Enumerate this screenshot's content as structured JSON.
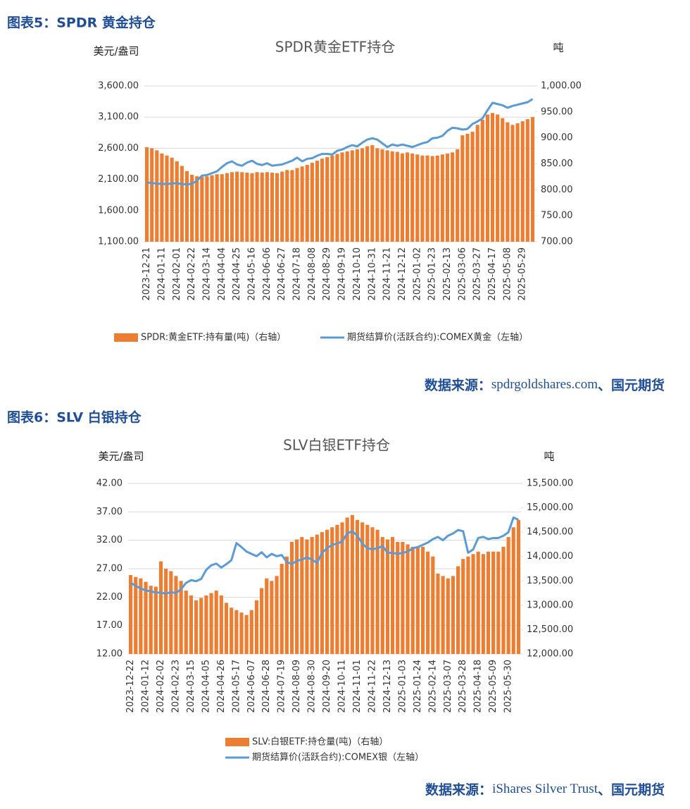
{
  "figures": [
    {
      "heading": "图表5：SPDR 黄金持仓",
      "source": {
        "label": "数据来源：",
        "text": "spdrgoldshares.com",
        "suffix": "、国元期货"
      }
    },
    {
      "heading": "图表6：SLV 白银持仓",
      "source": {
        "label": "数据来源：",
        "text": "iShares Silver Trust",
        "suffix": "、国元期货"
      }
    }
  ],
  "chart_data": [
    {
      "type": "combo",
      "title": "SPDR黄金ETF持仓",
      "y_label": "美元/盎司",
      "y2_label": "吨",
      "categories": [
        "2023-12-21",
        null,
        null,
        "2024-01-11",
        null,
        null,
        "2024-02-01",
        null,
        null,
        "2024-02-22",
        null,
        null,
        "2024-03-14",
        null,
        null,
        "2024-04-04",
        null,
        null,
        "2024-04-25",
        null,
        null,
        "2024-05-16",
        null,
        null,
        "2024-06-06",
        null,
        null,
        "2024-06-27",
        null,
        null,
        "2024-07-18",
        null,
        null,
        "2024-08-08",
        null,
        null,
        "2024-08-29",
        null,
        null,
        "2024-09-19",
        null,
        null,
        "2024-10-10",
        null,
        null,
        "2024-10-31",
        null,
        null,
        "2024-11-21",
        null,
        null,
        "2024-12-12",
        null,
        null,
        "2025-01-02",
        null,
        null,
        "2025-01-23",
        null,
        null,
        "2025-02-13",
        null,
        null,
        "2025-03-06",
        null,
        null,
        "2025-03-27",
        null,
        null,
        "2025-04-17",
        null,
        null,
        "2025-05-08",
        null,
        null,
        "2025-05-29",
        null,
        null
      ],
      "ylim": [
        1100,
        3600
      ],
      "yticks": [
        {
          "value": 1100,
          "label": "1,100.00"
        },
        {
          "value": 1600,
          "label": "1,600.00"
        },
        {
          "value": 2100,
          "label": "2,100.00"
        },
        {
          "value": 2600,
          "label": "2,600.00"
        },
        {
          "value": 3100,
          "label": "3,100.00"
        },
        {
          "value": 3600,
          "label": "3,600.00"
        }
      ],
      "y2lim": [
        700,
        1000
      ],
      "y2ticks": [
        {
          "value": 700,
          "label": "700.00"
        },
        {
          "value": 750,
          "label": "750.00"
        },
        {
          "value": 800,
          "label": "800.00"
        },
        {
          "value": 850,
          "label": "850.00"
        },
        {
          "value": 900,
          "label": "900.00"
        },
        {
          "value": 950,
          "label": "950.00"
        },
        {
          "value": 1000,
          "label": "1,000.00"
        }
      ],
      "series": [
        {
          "name": "SPDR:黄金ETF:持有量(吨)（右轴）",
          "type": "bar",
          "axis": "y2",
          "color": "#ed7d31",
          "values": [
            882,
            880,
            876,
            870,
            866,
            862,
            855,
            846,
            836,
            829,
            826,
            825,
            826,
            828,
            830,
            830,
            832,
            834,
            835,
            834,
            833,
            832,
            834,
            833,
            834,
            833,
            832,
            835,
            838,
            838,
            842,
            845,
            848,
            852,
            856,
            860,
            863,
            866,
            869,
            872,
            874,
            876,
            878,
            880,
            884,
            886,
            880,
            878,
            876,
            874,
            873,
            870,
            872,
            870,
            868,
            866,
            866,
            865,
            866,
            868,
            870,
            872,
            878,
            905,
            908,
            912,
            925,
            935,
            945,
            948,
            945,
            938,
            930,
            925,
            928,
            932,
            936,
            940
          ]
        },
        {
          "name": "期货结算价(活跃合约):COMEX黄金（左轴）",
          "type": "line",
          "color": "#5b9bd5",
          "values": [
            2050,
            2045,
            2030,
            2030,
            2025,
            2035,
            2040,
            2025,
            2020,
            2030,
            2080,
            2160,
            2170,
            2200,
            2230,
            2300,
            2360,
            2390,
            2340,
            2320,
            2370,
            2400,
            2350,
            2330,
            2360,
            2320,
            2330,
            2340,
            2370,
            2400,
            2450,
            2390,
            2430,
            2440,
            2480,
            2510,
            2510,
            2500,
            2560,
            2580,
            2620,
            2650,
            2630,
            2690,
            2740,
            2760,
            2740,
            2680,
            2620,
            2660,
            2640,
            2660,
            2640,
            2620,
            2650,
            2680,
            2700,
            2760,
            2770,
            2800,
            2880,
            2930,
            2920,
            2900,
            2910,
            2990,
            3030,
            3080,
            3210,
            3330,
            3310,
            3290,
            3250,
            3280,
            3300,
            3320,
            3340,
            3390
          ]
        }
      ]
    },
    {
      "type": "combo",
      "title": "SLV白银ETF持仓",
      "y_label": "美元/盎司",
      "y2_label": "吨",
      "categories": [
        "2023-12-22",
        null,
        null,
        "2024-01-12",
        null,
        null,
        "2024-02-02",
        null,
        null,
        "2024-02-23",
        null,
        null,
        "2024-03-15",
        null,
        null,
        "2024-04-05",
        null,
        null,
        "2024-04-26",
        null,
        null,
        "2024-05-17",
        null,
        null,
        "2024-06-07",
        null,
        null,
        "2024-06-28",
        null,
        null,
        "2024-07-19",
        null,
        null,
        "2024-08-09",
        null,
        null,
        "2024-08-30",
        null,
        null,
        "2024-09-20",
        null,
        null,
        "2024-10-11",
        null,
        null,
        "2024-11-01",
        null,
        null,
        "2024-11-22",
        null,
        null,
        "2024-12-13",
        null,
        null,
        "2025-01-03",
        null,
        null,
        "2025-01-24",
        null,
        null,
        "2025-02-14",
        null,
        null,
        "2025-03-07",
        null,
        null,
        "2025-03-28",
        null,
        null,
        "2025-04-18",
        null,
        null,
        "2025-05-09",
        null,
        null,
        "2025-05-30",
        null,
        null
      ],
      "ylim": [
        12,
        42
      ],
      "yticks": [
        {
          "value": 12,
          "label": "12.00"
        },
        {
          "value": 17,
          "label": "17.00"
        },
        {
          "value": 22,
          "label": "22.00"
        },
        {
          "value": 27,
          "label": "27.00"
        },
        {
          "value": 32,
          "label": "32.00"
        },
        {
          "value": 37,
          "label": "37.00"
        },
        {
          "value": 42,
          "label": "42.00"
        }
      ],
      "y2lim": [
        12000,
        15500
      ],
      "y2ticks": [
        {
          "value": 12000,
          "label": "12,000.00"
        },
        {
          "value": 12500,
          "label": "12,500.00"
        },
        {
          "value": 13000,
          "label": "13,000.00"
        },
        {
          "value": 13500,
          "label": "13,500.00"
        },
        {
          "value": 14000,
          "label": "14,000.00"
        },
        {
          "value": 14500,
          "label": "14,500.00"
        },
        {
          "value": 15000,
          "label": "15,000.00"
        },
        {
          "value": 15500,
          "label": "15,500.00"
        }
      ],
      "series": [
        {
          "name": "SLV:白银ETF:持仓量(吨)（右轴）",
          "type": "bar",
          "axis": "y2",
          "color": "#ed7d31",
          "values": [
            13620,
            13580,
            13550,
            13480,
            13400,
            13380,
            13900,
            13750,
            13700,
            13600,
            13500,
            13300,
            13200,
            13100,
            13150,
            13200,
            13250,
            13300,
            13200,
            13050,
            12950,
            12900,
            12850,
            12800,
            12900,
            13100,
            13350,
            13550,
            13500,
            13600,
            13850,
            14000,
            14300,
            14350,
            14400,
            14350,
            14400,
            14450,
            14500,
            14550,
            14600,
            14650,
            14700,
            14800,
            14850,
            14750,
            14700,
            14650,
            14600,
            14550,
            14400,
            14350,
            14400,
            14300,
            14300,
            14250,
            14200,
            14200,
            14200,
            14100,
            14000,
            13650,
            13600,
            13550,
            13600,
            13800,
            13950,
            14000,
            14050,
            14100,
            14050,
            14100,
            14100,
            14100,
            14200,
            14400,
            14600,
            14750
          ]
        },
        {
          "name": "期货结算价(活跃合约):COMEX银（左轴）",
          "type": "line",
          "color": "#5b9bd5",
          "values": [
            24.5,
            24.0,
            23.5,
            23.2,
            23.0,
            22.8,
            22.8,
            22.6,
            22.9,
            22.7,
            23.4,
            24.5,
            25.0,
            24.8,
            25.2,
            26.8,
            27.6,
            27.9,
            27.2,
            27.8,
            28.5,
            31.5,
            30.8,
            30.0,
            29.6,
            29.2,
            29.9,
            29.0,
            29.6,
            29.2,
            29.4,
            28.2,
            27.8,
            28.4,
            28.6,
            29.0,
            28.6,
            28.0,
            29.8,
            30.6,
            31.2,
            31.4,
            31.8,
            33.2,
            33.6,
            32.8,
            31.4,
            30.6,
            30.4,
            30.6,
            31.0,
            29.8,
            29.8,
            29.6,
            29.8,
            30.0,
            30.6,
            30.8,
            31.2,
            31.6,
            32.2,
            32.6,
            32.0,
            32.8,
            33.2,
            33.8,
            33.6,
            29.8,
            30.4,
            32.4,
            32.6,
            32.2,
            32.4,
            32.4,
            32.8,
            33.4,
            36.0,
            35.6
          ]
        }
      ]
    }
  ]
}
